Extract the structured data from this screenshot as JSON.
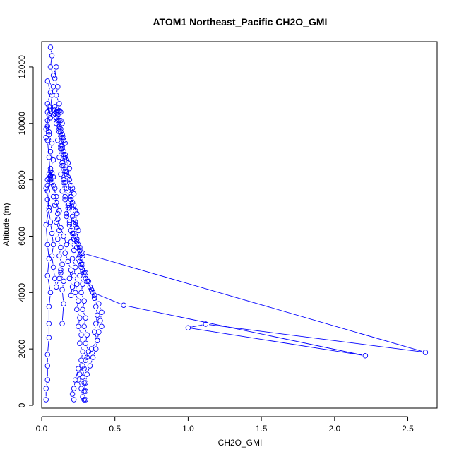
{
  "chart_data": {
    "type": "line",
    "title": "ATOM1 Northeast_Pacific CH2O_GMI",
    "xlabel": "CH2O_GMI",
    "ylabel": "Altitude (m)",
    "xlim": [
      0,
      2.7
    ],
    "ylim": [
      -100,
      12900
    ],
    "xticks": [
      0.0,
      0.5,
      1.0,
      1.5,
      2.0,
      2.5
    ],
    "xtick_labels": [
      "0.0",
      "0.5",
      "1.0",
      "1.5",
      "2.0",
      "2.5"
    ],
    "yticks": [
      0,
      2000,
      4000,
      6000,
      8000,
      10000,
      12000
    ],
    "ytick_labels": [
      "0",
      "2000",
      "4000",
      "6000",
      "8000",
      "10000",
      "12000"
    ],
    "grid": false,
    "marker": "open-circle",
    "color": "#0000ff",
    "series": [
      {
        "points": [
          [
            0.03,
            200
          ],
          [
            0.03,
            600
          ],
          [
            0.04,
            900
          ],
          [
            0.04,
            1400
          ],
          [
            0.04,
            1800
          ],
          [
            0.05,
            2400
          ],
          [
            0.05,
            2900
          ],
          [
            0.05,
            3500
          ],
          [
            0.06,
            4000
          ],
          [
            0.04,
            4600
          ],
          [
            0.05,
            5200
          ],
          [
            0.04,
            5700
          ],
          [
            0.03,
            6400
          ],
          [
            0.05,
            7000
          ],
          [
            0.04,
            7600
          ],
          [
            0.06,
            8100
          ],
          [
            0.05,
            8800
          ],
          [
            0.04,
            9400
          ],
          [
            0.03,
            9800
          ],
          [
            0.05,
            10300
          ],
          [
            0.04,
            10700
          ],
          [
            0.06,
            11100
          ],
          [
            0.04,
            11500
          ],
          [
            0.08,
            11300
          ],
          [
            0.07,
            11000
          ],
          [
            0.06,
            10500
          ],
          [
            0.04,
            10100
          ],
          [
            0.05,
            9700
          ],
          [
            0.03,
            9500
          ],
          [
            0.04,
            10400
          ],
          [
            0.05,
            10600
          ],
          [
            0.06,
            10200
          ],
          [
            0.04,
            9900
          ],
          [
            0.05,
            9600
          ],
          [
            0.07,
            9300
          ],
          [
            0.06,
            9000
          ],
          [
            0.08,
            8700
          ],
          [
            0.06,
            8400
          ],
          [
            0.07,
            8100
          ],
          [
            0.08,
            7800
          ],
          [
            0.1,
            7400
          ],
          [
            0.09,
            7100
          ],
          [
            0.11,
            6800
          ],
          [
            0.1,
            6500
          ],
          [
            0.12,
            6200
          ],
          [
            0.11,
            5900
          ],
          [
            0.13,
            5600
          ],
          [
            0.12,
            5300
          ],
          [
            0.14,
            5000
          ],
          [
            0.13,
            4700
          ],
          [
            0.15,
            4400
          ],
          [
            0.14,
            4100
          ],
          [
            0.15,
            3600
          ],
          [
            0.14,
            2900
          ]
        ]
      },
      {
        "points": [
          [
            0.06,
            12700
          ],
          [
            0.07,
            12400
          ],
          [
            0.06,
            12000
          ],
          [
            0.08,
            11700
          ],
          [
            0.1,
            12000
          ],
          [
            0.09,
            11600
          ],
          [
            0.11,
            11300
          ],
          [
            0.1,
            11000
          ],
          [
            0.12,
            10700
          ],
          [
            0.11,
            10400
          ],
          [
            0.13,
            10100
          ],
          [
            0.12,
            9800
          ],
          [
            0.14,
            9500
          ],
          [
            0.13,
            9200
          ],
          [
            0.15,
            8900
          ],
          [
            0.14,
            8600
          ],
          [
            0.16,
            8300
          ],
          [
            0.15,
            8000
          ],
          [
            0.17,
            7700
          ],
          [
            0.16,
            7400
          ],
          [
            0.18,
            7100
          ],
          [
            0.17,
            6800
          ],
          [
            0.19,
            6500
          ],
          [
            0.2,
            6200
          ],
          [
            0.22,
            5900
          ],
          [
            0.24,
            5600
          ],
          [
            0.26,
            5300
          ],
          [
            0.28,
            5000
          ],
          [
            0.3,
            4700
          ],
          [
            0.32,
            4400
          ],
          [
            0.34,
            4100
          ],
          [
            0.36,
            3800
          ],
          [
            0.37,
            3500
          ],
          [
            0.38,
            3200
          ],
          [
            0.37,
            2900
          ],
          [
            0.36,
            2600
          ],
          [
            0.38,
            2300
          ],
          [
            0.37,
            2000
          ],
          [
            0.35,
            1700
          ],
          [
            0.33,
            1400
          ],
          [
            0.31,
            1100
          ],
          [
            0.3,
            800
          ],
          [
            0.29,
            500
          ],
          [
            0.3,
            200
          ]
        ]
      },
      {
        "points": [
          [
            0.08,
            10500
          ],
          [
            0.1,
            10200
          ],
          [
            0.12,
            9900
          ],
          [
            0.14,
            9600
          ],
          [
            0.16,
            9300
          ],
          [
            0.15,
            9000
          ],
          [
            0.17,
            8700
          ],
          [
            0.19,
            8400
          ],
          [
            0.18,
            8100
          ],
          [
            0.2,
            7800
          ],
          [
            0.22,
            7500
          ],
          [
            0.21,
            7200
          ],
          [
            0.23,
            6900
          ],
          [
            0.22,
            6600
          ],
          [
            0.24,
            6300
          ],
          [
            0.23,
            6000
          ],
          [
            0.25,
            5700
          ],
          [
            0.27,
            5400
          ],
          [
            0.26,
            5100
          ],
          [
            0.28,
            4800
          ],
          [
            0.3,
            4500
          ],
          [
            0.33,
            4200
          ],
          [
            0.36,
            3900
          ],
          [
            0.39,
            3600
          ],
          [
            0.41,
            3300
          ],
          [
            0.4,
            3000
          ],
          [
            0.41,
            2800
          ],
          [
            0.39,
            2600
          ],
          [
            0.38,
            2300
          ],
          [
            0.34,
            2000
          ],
          [
            0.31,
            1700
          ],
          [
            0.28,
            1400
          ],
          [
            0.26,
            1100
          ],
          [
            0.25,
            900
          ],
          [
            0.27,
            600
          ],
          [
            0.28,
            300
          ],
          [
            0.29,
            200
          ]
        ]
      },
      {
        "points": [
          [
            0.12,
            10400
          ],
          [
            0.11,
            10100
          ],
          [
            0.13,
            9800
          ],
          [
            0.15,
            9500
          ],
          [
            0.14,
            9200
          ],
          [
            0.16,
            8900
          ],
          [
            0.18,
            8600
          ],
          [
            0.17,
            8300
          ],
          [
            0.19,
            8000
          ],
          [
            0.21,
            7700
          ],
          [
            0.2,
            7400
          ],
          [
            0.22,
            7100
          ],
          [
            0.24,
            6800
          ],
          [
            0.23,
            6500
          ],
          [
            0.25,
            6200
          ],
          [
            0.24,
            5900
          ],
          [
            0.26,
            5600
          ],
          [
            0.28,
            5300
          ],
          [
            0.27,
            5000
          ],
          [
            0.29,
            4700
          ],
          [
            0.31,
            4400
          ],
          [
            0.35,
            4000
          ],
          [
            0.56,
            3550
          ],
          [
            2.21,
            1760
          ],
          [
            1.0,
            2750
          ],
          [
            1.12,
            2880
          ],
          [
            2.62,
            1880
          ],
          [
            0.28,
            5400
          ]
        ]
      },
      {
        "points": [
          [
            0.09,
            10600
          ],
          [
            0.08,
            10300
          ],
          [
            0.1,
            10000
          ],
          [
            0.12,
            9700
          ],
          [
            0.11,
            9400
          ],
          [
            0.13,
            9100
          ],
          [
            0.12,
            8800
          ],
          [
            0.14,
            8500
          ],
          [
            0.13,
            8200
          ],
          [
            0.15,
            7900
          ],
          [
            0.14,
            7600
          ],
          [
            0.16,
            7300
          ],
          [
            0.18,
            7000
          ],
          [
            0.17,
            6700
          ],
          [
            0.19,
            6400
          ],
          [
            0.21,
            6100
          ],
          [
            0.2,
            5800
          ],
          [
            0.22,
            5500
          ],
          [
            0.21,
            5200
          ],
          [
            0.23,
            4900
          ],
          [
            0.22,
            4600
          ],
          [
            0.24,
            4300
          ],
          [
            0.23,
            4000
          ],
          [
            0.25,
            3700
          ],
          [
            0.24,
            3400
          ],
          [
            0.26,
            3100
          ],
          [
            0.25,
            2800
          ],
          [
            0.27,
            2500
          ],
          [
            0.26,
            2200
          ],
          [
            0.28,
            1900
          ],
          [
            0.27,
            1600
          ],
          [
            0.25,
            1300
          ],
          [
            0.23,
            900
          ],
          [
            0.22,
            600
          ],
          [
            0.21,
            400
          ],
          [
            0.22,
            200
          ]
        ]
      },
      {
        "points": [
          [
            0.05,
            8200
          ],
          [
            0.06,
            8000
          ],
          [
            0.08,
            8100
          ],
          [
            0.07,
            7900
          ],
          [
            0.09,
            7700
          ],
          [
            0.08,
            7400
          ],
          [
            0.1,
            7200
          ],
          [
            0.12,
            6900
          ],
          [
            0.11,
            6600
          ],
          [
            0.13,
            6300
          ],
          [
            0.15,
            6000
          ],
          [
            0.17,
            5700
          ],
          [
            0.16,
            5400
          ],
          [
            0.18,
            5100
          ],
          [
            0.2,
            4800
          ],
          [
            0.19,
            4500
          ],
          [
            0.21,
            4200
          ],
          [
            0.2,
            3900
          ]
        ]
      },
      {
        "points": [
          [
            0.04,
            7800
          ],
          [
            0.05,
            8050
          ],
          [
            0.06,
            8150
          ],
          [
            0.07,
            8250
          ],
          [
            0.06,
            8300
          ],
          [
            0.04,
            8000
          ],
          [
            0.03,
            7700
          ],
          [
            0.04,
            7300
          ],
          [
            0.05,
            6900
          ],
          [
            0.06,
            6500
          ],
          [
            0.07,
            6100
          ],
          [
            0.08,
            5700
          ],
          [
            0.07,
            5300
          ],
          [
            0.08,
            4900
          ],
          [
            0.09,
            4500
          ],
          [
            0.1,
            4200
          ],
          [
            0.12,
            4500
          ],
          [
            0.13,
            4800
          ]
        ]
      },
      {
        "points": [
          [
            0.1,
            10400
          ],
          [
            0.12,
            10450
          ],
          [
            0.09,
            10350
          ],
          [
            0.11,
            10300
          ],
          [
            0.13,
            10400
          ],
          [
            0.1,
            10200
          ],
          [
            0.12,
            10100
          ],
          [
            0.14,
            10000
          ],
          [
            0.13,
            9700
          ],
          [
            0.15,
            9400
          ],
          [
            0.14,
            9100
          ],
          [
            0.16,
            8800
          ],
          [
            0.15,
            8500
          ],
          [
            0.17,
            8200
          ],
          [
            0.16,
            7900
          ],
          [
            0.18,
            7600
          ],
          [
            0.2,
            7300
          ],
          [
            0.19,
            7000
          ],
          [
            0.21,
            6700
          ],
          [
            0.23,
            6400
          ],
          [
            0.22,
            6100
          ],
          [
            0.24,
            5800
          ],
          [
            0.26,
            5500
          ],
          [
            0.25,
            5200
          ],
          [
            0.27,
            4900
          ],
          [
            0.26,
            4600
          ],
          [
            0.28,
            4300
          ],
          [
            0.27,
            4000
          ],
          [
            0.29,
            3700
          ],
          [
            0.28,
            3400
          ],
          [
            0.3,
            3100
          ],
          [
            0.29,
            2800
          ],
          [
            0.31,
            2500
          ],
          [
            0.3,
            2200
          ],
          [
            0.32,
            1900
          ],
          [
            0.3,
            1600
          ],
          [
            0.29,
            1300
          ],
          [
            0.28,
            1000
          ],
          [
            0.29,
            800
          ],
          [
            0.3,
            500
          ],
          [
            0.29,
            200
          ]
        ]
      }
    ]
  }
}
